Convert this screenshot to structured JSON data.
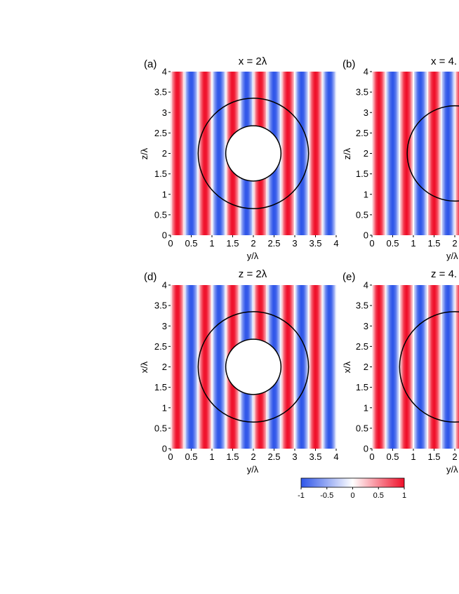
{
  "chart_data": [
    {
      "type": "heatmap",
      "panel_label": "(a)",
      "title": "x = 2λ",
      "xlabel": "y/λ",
      "ylabel": "z/λ",
      "xlim": [
        0,
        4
      ],
      "ylim": [
        0,
        4
      ],
      "x_ticks": [
        "0",
        "0.5",
        "1",
        "1.5",
        "2",
        "2.5",
        "3",
        "3.5",
        "4"
      ],
      "y_ticks": [
        "0",
        "0.5",
        "1",
        "1.5",
        "2",
        "2.5",
        "3",
        "3.5",
        "4"
      ],
      "field": "stripes",
      "period": 0.667,
      "outer_circle": {
        "center": [
          2,
          2
        ],
        "radius": 1.333
      },
      "inner_circle": {
        "center": [
          2,
          2
        ],
        "radius": 0.667
      }
    },
    {
      "type": "heatmap",
      "panel_label": "(b)",
      "title": "x = 4.",
      "xlabel": "y/λ",
      "ylabel": "z/λ",
      "xlim": [
        0,
        4
      ],
      "ylim": [
        0,
        4
      ],
      "x_ticks": [
        "0",
        "0.5",
        "1",
        "1.5",
        "2"
      ],
      "y_ticks": [
        "0",
        "0.5",
        "1",
        "1.5",
        "2",
        "2.5",
        "3",
        "3.5",
        "4"
      ],
      "field": "stripes",
      "period": 0.667,
      "outer_circle": {
        "center": [
          2,
          2
        ],
        "radius": 1.15
      },
      "inner_circle": null
    },
    {
      "type": "heatmap",
      "panel_label": "(d)",
      "title": "z = 2λ",
      "xlabel": "y/λ",
      "ylabel": "x/λ",
      "xlim": [
        0,
        4
      ],
      "ylim": [
        0,
        4
      ],
      "x_ticks": [
        "0",
        "0.5",
        "1",
        "1.5",
        "2",
        "2.5",
        "3",
        "3.5",
        "4"
      ],
      "y_ticks": [
        "0",
        "0.5",
        "1",
        "1.5",
        "2",
        "2.5",
        "3",
        "3.5",
        "4"
      ],
      "field": "stripes",
      "period": 0.667,
      "outer_circle": {
        "center": [
          2,
          2
        ],
        "radius": 1.333
      },
      "inner_circle": {
        "center": [
          2,
          2
        ],
        "radius": 0.667
      }
    },
    {
      "type": "heatmap",
      "panel_label": "(e)",
      "title": "z = 4.",
      "xlabel": "y/λ",
      "ylabel": "x/λ",
      "xlim": [
        0,
        4
      ],
      "ylim": [
        0,
        4
      ],
      "x_ticks": [
        "0",
        "0.5",
        "1",
        "1.5",
        "2"
      ],
      "y_ticks": [
        "0",
        "0.5",
        "1",
        "1.5",
        "2",
        "2.5",
        "3",
        "3.5",
        "4"
      ],
      "field": "stripes",
      "period": 0.667,
      "outer_circle": {
        "center": [
          2,
          2
        ],
        "radius": 1.333
      },
      "inner_circle": null
    }
  ],
  "colorbar": {
    "range": [
      -1,
      1
    ],
    "ticks": [
      "-1",
      "-0.5",
      "0",
      "0.5",
      "1"
    ],
    "colors": {
      "low": "#2f56e9",
      "mid": "#ffffff",
      "high": "#f0102a"
    }
  }
}
